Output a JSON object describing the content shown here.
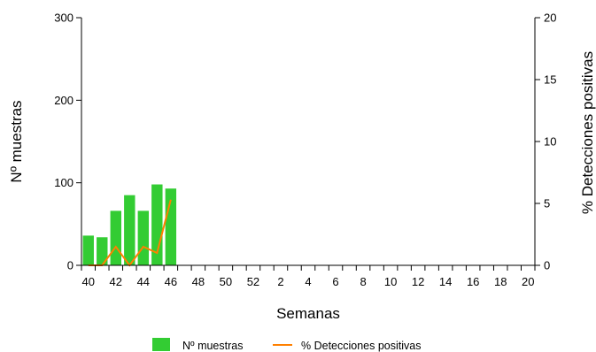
{
  "chart_data": {
    "type": "bar",
    "xlabel": "Semanas",
    "ylabel": "Nº muestras",
    "y2label": "% Detecciones positivas",
    "ylim": [
      0,
      300
    ],
    "y2lim": [
      0,
      20
    ],
    "yticks": [
      0,
      100,
      200,
      300
    ],
    "y2ticks": [
      0,
      5,
      10,
      15,
      20
    ],
    "weeks": [
      "40",
      "41",
      "42",
      "43",
      "44",
      "45",
      "46",
      "47",
      "48",
      "49",
      "50",
      "51",
      "52",
      "1",
      "2",
      "3",
      "4",
      "5",
      "6",
      "7",
      "8",
      "9",
      "10",
      "11",
      "12",
      "13",
      "14",
      "15",
      "16",
      "17",
      "18",
      "19",
      "20"
    ],
    "xtick_labels": [
      "40",
      "42",
      "44",
      "46",
      "48",
      "50",
      "52",
      "2",
      "4",
      "6",
      "8",
      "10",
      "12",
      "14",
      "16",
      "18",
      "20"
    ],
    "series": [
      {
        "name": "Nº muestras",
        "type": "bar",
        "axis": "left",
        "color": "#33cc33",
        "values": [
          36,
          34,
          66,
          85,
          66,
          98,
          93
        ]
      },
      {
        "name": "% Detecciones positivas",
        "type": "line",
        "axis": "right",
        "color": "#ff8000",
        "values": [
          0,
          0,
          1.5,
          0,
          1.5,
          1.0,
          5.3
        ]
      }
    ],
    "legend": {
      "position": "bottom",
      "items": [
        "Nº muestras",
        "% Detecciones positivas"
      ]
    },
    "grid": false
  }
}
